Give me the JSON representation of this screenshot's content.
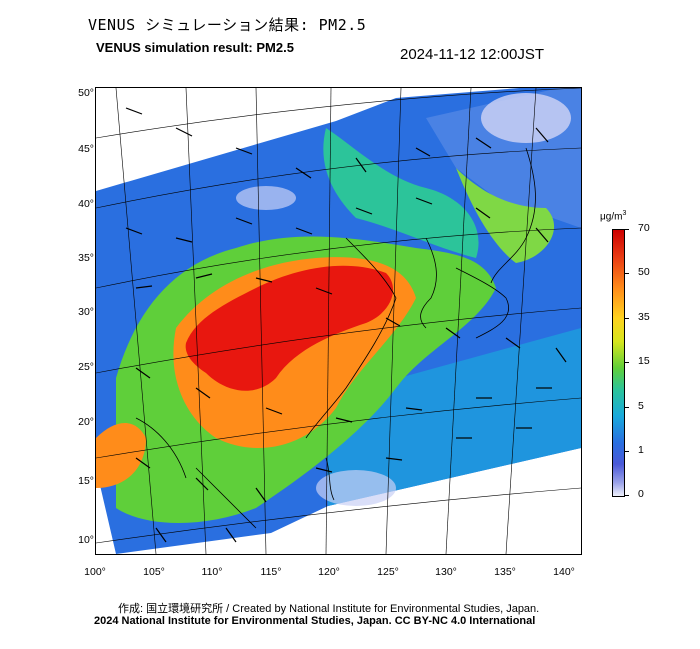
{
  "header": {
    "title_ja": "VENUS シミュレーション結果: PM2.5",
    "title_en": "VENUS simulation result: PM2.5",
    "timestamp": "2024-11-12 12:00JST"
  },
  "map": {
    "lat_labels": [
      "50°",
      "45°",
      "40°",
      "35°",
      "30°",
      "25°",
      "20°",
      "15°",
      "10°"
    ],
    "lon_labels": [
      "100°",
      "105°",
      "110°",
      "115°",
      "120°",
      "125°",
      "130°",
      "135°",
      "140°"
    ],
    "colors": {
      "very_high": "#e8170f",
      "high": "#ff8c1a",
      "moderate": "#5fcf3a",
      "low": "#19a9dc",
      "very_low": "#2a6fe0",
      "clean": "#c9d0f5"
    }
  },
  "colorbar": {
    "unit": "μg/m",
    "unit_sup": "3",
    "ticks": [
      "70",
      "50",
      "35",
      "15",
      "5",
      "1",
      "0"
    ]
  },
  "footer": {
    "credit_line_1": "作成: 国立環境研究所 / Created by National Institute for Environmental Studies, Japan.",
    "credit_line_2": "2024 National Institute for Environmental Studies, Japan. CC BY-NC 4.0 International"
  }
}
